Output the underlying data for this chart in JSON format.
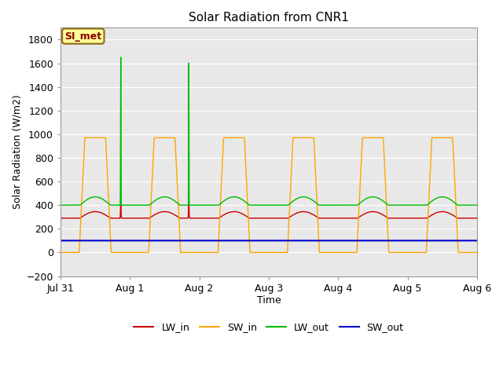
{
  "title": "Solar Radiation from CNR1",
  "xlabel": "Time",
  "ylabel": "Solar Radiation (W/m2)",
  "annotation": "SI_met",
  "ylim": [
    -200,
    1900
  ],
  "yticks": [
    -200,
    0,
    200,
    400,
    600,
    800,
    1000,
    1200,
    1400,
    1600,
    1800
  ],
  "fig_bg_color": "#ffffff",
  "plot_bg_color": "#e8e8e8",
  "series": {
    "LW_in": {
      "color": "#cc0000",
      "label": "LW_in"
    },
    "SW_in": {
      "color": "#ffa500",
      "label": "SW_in"
    },
    "LW_out": {
      "color": "#00bb00",
      "label": "LW_out"
    },
    "SW_out": {
      "color": "#0000cc",
      "label": "SW_out"
    }
  },
  "x_tick_labels": [
    "Jul 31",
    "Aug 1",
    "Aug 2",
    "Aug 3",
    "Aug 4",
    "Aug 5",
    "Aug 6"
  ],
  "n_days": 6,
  "points_per_day": 288
}
